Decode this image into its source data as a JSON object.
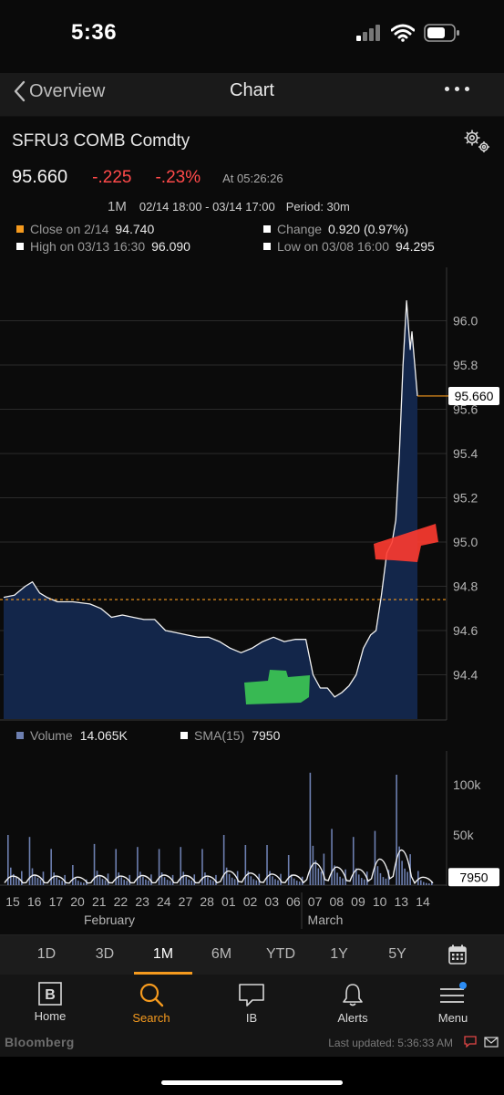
{
  "status": {
    "time": "5:36"
  },
  "nav": {
    "back_label": "Overview",
    "title": "Chart"
  },
  "security": {
    "ticker": "SFRU3 COMB Comdty",
    "last": "95.660",
    "change": "-.225",
    "change_pct": "-.23%",
    "at_time": "At 05:26:26",
    "range_button": "1M",
    "date_range": "02/14 18:00 - 03/14 17:00",
    "period": "Period: 30m"
  },
  "legend": {
    "close_label": "Close on 2/14",
    "close_value": "94.740",
    "change_label": "Change",
    "change_value": "0.920 (0.97%)",
    "high_label": "High on 03/13 16:30",
    "high_value": "96.090",
    "low_label": "Low on 03/08 16:00",
    "low_value": "94.295"
  },
  "volume_legend": {
    "volume_label": "Volume",
    "volume_value": "14.065K",
    "sma_label": "SMA(15)",
    "sma_value": "7950"
  },
  "range_tabs": [
    "1D",
    "3D",
    "1M",
    "6M",
    "YTD",
    "1Y",
    "5Y"
  ],
  "active_range": "1M",
  "tab_bar": [
    {
      "label": "Home",
      "icon": "bloomberg-b-icon"
    },
    {
      "label": "Search",
      "icon": "search-icon"
    },
    {
      "label": "IB",
      "icon": "chat-icon"
    },
    {
      "label": "Alerts",
      "icon": "bell-icon"
    },
    {
      "label": "Menu",
      "icon": "menu-icon"
    }
  ],
  "active_tab": "Search",
  "footer": {
    "brand": "Bloomberg",
    "last_updated": "Last updated: 5:36:33 AM"
  },
  "colors": {
    "accent": "#f59a1e",
    "negative": "#ff4a4a",
    "area_fill": "#13264a",
    "price_line": "#f2f2f2"
  },
  "chart_data": [
    {
      "type": "area",
      "title": "",
      "xlabel": "",
      "ylabel": "",
      "x_ticks": [
        "15",
        "16",
        "17",
        "20",
        "21",
        "22",
        "23",
        "24",
        "27",
        "28",
        "01",
        "02",
        "03",
        "06",
        "07",
        "08",
        "09",
        "10",
        "13",
        "14"
      ],
      "x_month_labels": [
        "February",
        "March"
      ],
      "y_ticks": [
        94.4,
        94.6,
        94.8,
        95.0,
        95.2,
        95.4,
        95.6,
        95.8,
        96.0
      ],
      "ylim": [
        94.2,
        96.2
      ],
      "reference_line": {
        "label": "Close on 2/14",
        "value": 94.74
      },
      "last_value_label": "95.660",
      "x": [
        "15",
        "15",
        "16",
        "16",
        "16",
        "17",
        "17",
        "20",
        "21",
        "21",
        "22",
        "22",
        "23",
        "23",
        "24",
        "24",
        "27",
        "27",
        "28",
        "28",
        "01",
        "01",
        "02",
        "02",
        "03",
        "03",
        "06",
        "06",
        "07",
        "07",
        "07",
        "08",
        "08",
        "08",
        "09",
        "09",
        "09",
        "10",
        "10",
        "10",
        "10",
        "13",
        "13",
        "13",
        "13",
        "13",
        "13",
        "14",
        "14"
      ],
      "series": [
        {
          "values": [
            94.75,
            94.76,
            94.8,
            94.82,
            94.77,
            94.75,
            94.73,
            94.73,
            94.72,
            94.7,
            94.66,
            94.67,
            94.66,
            94.65,
            94.65,
            94.6,
            94.59,
            94.58,
            94.57,
            94.57,
            94.55,
            94.52,
            94.5,
            94.52,
            94.55,
            94.57,
            94.55,
            94.56,
            94.56,
            94.4,
            94.34,
            94.34,
            94.3,
            94.32,
            94.35,
            94.4,
            94.52,
            94.58,
            94.6,
            94.76,
            94.95,
            95.0,
            95.1,
            95.4,
            95.8,
            96.09,
            95.87,
            95.95,
            95.66
          ]
        }
      ]
    },
    {
      "type": "bar",
      "title": "",
      "xlabel": "",
      "ylabel": "",
      "y_ticks": [
        "50k",
        "100k"
      ],
      "ylim": [
        0,
        120000
      ],
      "last_value_label": "7950",
      "x": [
        "15",
        "16",
        "17",
        "20",
        "21",
        "22",
        "23",
        "24",
        "27",
        "28",
        "01",
        "02",
        "03",
        "06",
        "07",
        "08",
        "09",
        "10",
        "13",
        "14"
      ],
      "series": [
        {
          "name": "Volume",
          "values": [
            50000,
            48000,
            36000,
            20000,
            41000,
            36000,
            38000,
            36000,
            38000,
            36000,
            50000,
            40000,
            40000,
            30000,
            112000,
            56000,
            48000,
            54000,
            110000,
            14065
          ]
        },
        {
          "name": "SMA(15)",
          "values": [
            9000,
            10000,
            9000,
            8000,
            9500,
            9000,
            9500,
            10000,
            9500,
            9000,
            14000,
            12000,
            11000,
            10000,
            22000,
            18000,
            16000,
            26000,
            35000,
            7950
          ]
        }
      ]
    }
  ]
}
